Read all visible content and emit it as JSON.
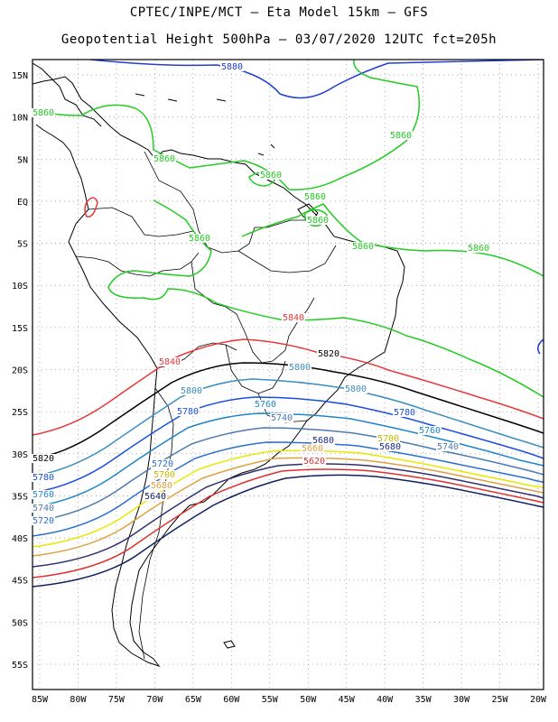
{
  "header": {
    "line1": "CPTEC/INPE/MCT –  Eta Model 15km – GFS",
    "line2": "Geopotential Height 500hPa – 03/07/2020 12UTC fct=205h"
  },
  "axes": {
    "lon_labels": [
      "85W",
      "80W",
      "75W",
      "70W",
      "65W",
      "60W",
      "55W",
      "50W",
      "45W",
      "40W",
      "35W",
      "30W",
      "25W",
      "20W"
    ],
    "lat_labels": [
      "15N",
      "10N",
      "5N",
      "EQ",
      "5S",
      "10S",
      "15S",
      "20S",
      "25S",
      "30S",
      "35S",
      "40S",
      "45S",
      "50S",
      "55S"
    ]
  },
  "colors": {
    "5880": "#1f3fd0",
    "5860": "#22cc22",
    "5840": "#e83838",
    "5820": "#000000",
    "5800": "#3b8fc0",
    "5780": "#1a4fe0",
    "5760": "#1f86c8",
    "5740": "#4a7ab0",
    "5720": "#2a6fd0",
    "5700": "#e8e800",
    "5680": "#e0a040",
    "5660": "#303070",
    "5640": "#e03030",
    "5620": "#102060"
  },
  "contour_labels": [
    {
      "text": "5880",
      "color": "#1f3fd0"
    },
    {
      "text": "5860",
      "color": "#22cc22"
    },
    {
      "text": "5860",
      "color": "#22cc22"
    },
    {
      "text": "5860",
      "color": "#22cc22"
    },
    {
      "text": "5860",
      "color": "#22cc22"
    },
    {
      "text": "5860",
      "color": "#22cc22"
    },
    {
      "text": "5860",
      "color": "#22cc22"
    },
    {
      "text": "5860",
      "color": "#22cc22"
    },
    {
      "text": "5860",
      "color": "#22cc22"
    },
    {
      "text": "5860",
      "color": "#22cc22"
    },
    {
      "text": "5840",
      "color": "#e83838"
    },
    {
      "text": "5840",
      "color": "#e83838"
    },
    {
      "text": "5820",
      "color": "#000000"
    },
    {
      "text": "5820",
      "color": "#000000"
    },
    {
      "text": "5800",
      "color": "#3b8fc0"
    },
    {
      "text": "5800",
      "color": "#3b8fc0"
    },
    {
      "text": "5800",
      "color": "#3b8fc0"
    },
    {
      "text": "5780",
      "color": "#1a4fe0"
    },
    {
      "text": "5780",
      "color": "#1a4fe0"
    },
    {
      "text": "5780",
      "color": "#1a4fe0"
    },
    {
      "text": "5760",
      "color": "#1f86c8"
    },
    {
      "text": "5760",
      "color": "#1f86c8"
    },
    {
      "text": "5760",
      "color": "#1f86c8"
    },
    {
      "text": "5740",
      "color": "#4a7ab0"
    },
    {
      "text": "5740",
      "color": "#4a7ab0"
    },
    {
      "text": "5740",
      "color": "#4a7ab0"
    },
    {
      "text": "5720",
      "color": "#2a6fd0"
    },
    {
      "text": "5720",
      "color": "#2a6fd0"
    },
    {
      "text": "5700",
      "color": "#c8b800"
    },
    {
      "text": "5700",
      "color": "#c8b800"
    },
    {
      "text": "5680",
      "color": "#1a2a8a"
    },
    {
      "text": "5680",
      "color": "#1a2a8a"
    },
    {
      "text": "5680",
      "color": "#e0a040"
    },
    {
      "text": "5660",
      "color": "#e0a040"
    },
    {
      "text": "5640",
      "color": "#102060"
    },
    {
      "text": "5620",
      "color": "#e03030"
    }
  ]
}
